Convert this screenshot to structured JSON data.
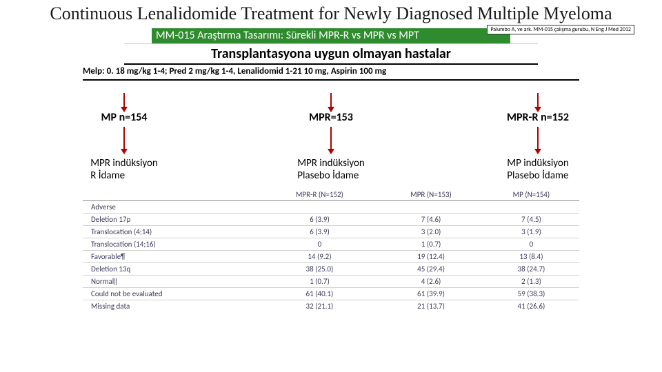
{
  "title": "Continuous Lenalidomide Treatment for Newly Diagnosed Multiple Myeloma",
  "citation": "Palumbo A, ve ark. MM-015 çalışma gurubu, N Eng J Med 2012",
  "green_bar": "MM-015 Araştırma Tasarımı: Sürekli MPR-R vs MPR vs MPT",
  "sub_header": "Transplantasyona uygun olmayan hastalar",
  "dosing": "Melp: 0. 18 mg/kg 1-4; Pred 2 mg/kg 1-4, Lenalidomid 1-21 10 mg, Aspirin 100 mg",
  "arms": [
    {
      "label": "MP n=154",
      "desc1": "MPR indüksiyon",
      "desc2": "R İdame"
    },
    {
      "label": "MPR=153",
      "desc1": "MPR indüksiyon",
      "desc2": "Plasebo İdame"
    },
    {
      "label": "MPR-R n=152",
      "desc1": "MP indüksiyon",
      "desc2": "Plasebo İdame"
    }
  ],
  "table": {
    "headers": [
      "",
      "MPR-R (N=152)",
      "MPR (N=153)",
      "MP (N=154)"
    ],
    "rows": [
      {
        "lbl": "Adverse",
        "cells": [
          "",
          "",
          ""
        ],
        "style": "head"
      },
      {
        "lbl": "Deletion 17p",
        "cells": [
          "6 (3.9)",
          "7 (4.6)",
          "7 (4.5)"
        ],
        "indent": true
      },
      {
        "lbl": "Translocation (4;14)",
        "cells": [
          "6 (3.9)",
          "3 (2.0)",
          "3 (1.9)"
        ],
        "indent": true
      },
      {
        "lbl": "Translocation (14;16)",
        "cells": [
          "0",
          "1 (0.7)",
          "0"
        ],
        "indent": true
      },
      {
        "lbl": "Favorable¶",
        "cells": [
          "14 (9.2)",
          "19 (12.4)",
          "13 (8.4)"
        ],
        "style": "head"
      },
      {
        "lbl": "Deletion 13q",
        "cells": [
          "38 (25.0)",
          "45 (29.4)",
          "38 (24.7)"
        ],
        "style": "head"
      },
      {
        "lbl": "Normal‖",
        "cells": [
          "1 (0.7)",
          "4 (2.6)",
          "2 (1.3)"
        ],
        "style": "head"
      },
      {
        "lbl": "Could not be evaluated",
        "cells": [
          "61 (40.1)",
          "61 (39.9)",
          "59 (38.3)"
        ],
        "style": "head"
      },
      {
        "lbl": "Missing data",
        "cells": [
          "32 (21.1)",
          "21 (13.7)",
          "41 (26.6)"
        ],
        "style": "head"
      }
    ]
  },
  "colors": {
    "green": "#2e8b2e",
    "arrow": "#b00000",
    "tableText": "#3a3a5a"
  }
}
